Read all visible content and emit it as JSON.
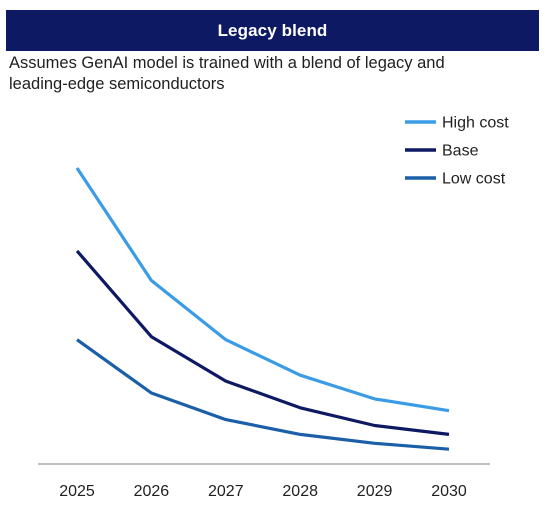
{
  "header": {
    "title": "Legacy blend",
    "subtitle": "Assumes GenAI model is trained with a blend of legacy and leading-edge semiconductors"
  },
  "chart_data": {
    "type": "line",
    "x": [
      "2025",
      "2026",
      "2027",
      "2028",
      "2029",
      "2030"
    ],
    "ylim": [
      0,
      100
    ],
    "grid": false,
    "legend_position": "top-right",
    "series": [
      {
        "name": "High cost",
        "color": "#3a9be6",
        "values": [
          100,
          62,
          42,
          30,
          22,
          18
        ]
      },
      {
        "name": "Base",
        "color": "#0d1a63",
        "values": [
          72,
          43,
          28,
          19,
          13,
          10
        ]
      },
      {
        "name": "Low cost",
        "color": "#1a5fa8",
        "values": [
          42,
          24,
          15,
          10,
          7,
          5
        ]
      }
    ]
  }
}
